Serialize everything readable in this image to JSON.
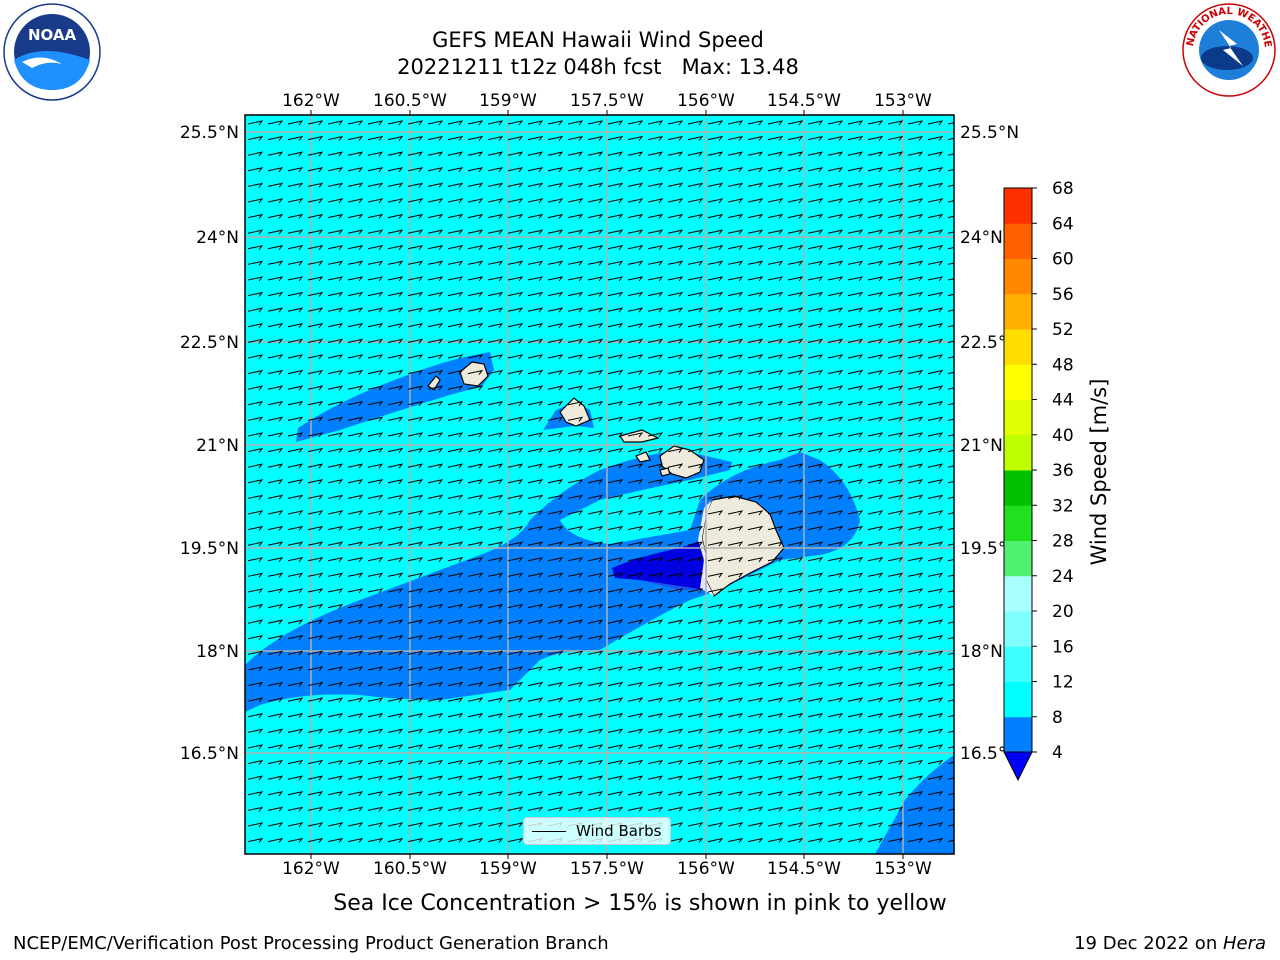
{
  "title": {
    "line1": "GEFS MEAN Hawaii Wind Speed",
    "line2": "20221211 t12z 048h fcst   Max: 13.48"
  },
  "map": {
    "lon_labels": [
      "162°W",
      "160.5°W",
      "159°W",
      "157.5°W",
      "156°W",
      "154.5°W",
      "153°W"
    ],
    "lat_labels": [
      "25.5°N",
      "24°N",
      "22.5°N",
      "21°N",
      "19.5°N",
      "18°N",
      "16.5°N"
    ],
    "ocean_color": "#00ffff",
    "land_color": "#eeebdd",
    "low_wind_colors": [
      "#0080ff",
      "#2060f0",
      "#0000dd"
    ],
    "legend_label": "Wind Barbs"
  },
  "colorbar": {
    "title": "Wind Speed [m/s]",
    "levels": [
      "4",
      "8",
      "12",
      "16",
      "20",
      "24",
      "28",
      "32",
      "36",
      "40",
      "44",
      "48",
      "52",
      "56",
      "60",
      "64",
      "68"
    ],
    "colors": [
      "#0080ff",
      "#00ffff",
      "#40ffff",
      "#80ffff",
      "#aaffff",
      "#50f070",
      "#20e020",
      "#00c000",
      "#c0ff00",
      "#e0ff00",
      "#ffff00",
      "#ffdd00",
      "#ffb000",
      "#ff8800",
      "#ff6000",
      "#ff3000",
      "#ff0000"
    ],
    "under_color": "#0000ff"
  },
  "footer": {
    "note": "Sea Ice Concentration > 15% is shown in pink to yellow",
    "left": "NCEP/EMC/Verification Post Processing Product Generation Branch",
    "right_date": "19 Dec 2022 on ",
    "right_host": "Hera"
  },
  "logos": {
    "noaa_text": "NOAA",
    "nws_text": "NATIONAL WEATHER SERVICE"
  }
}
